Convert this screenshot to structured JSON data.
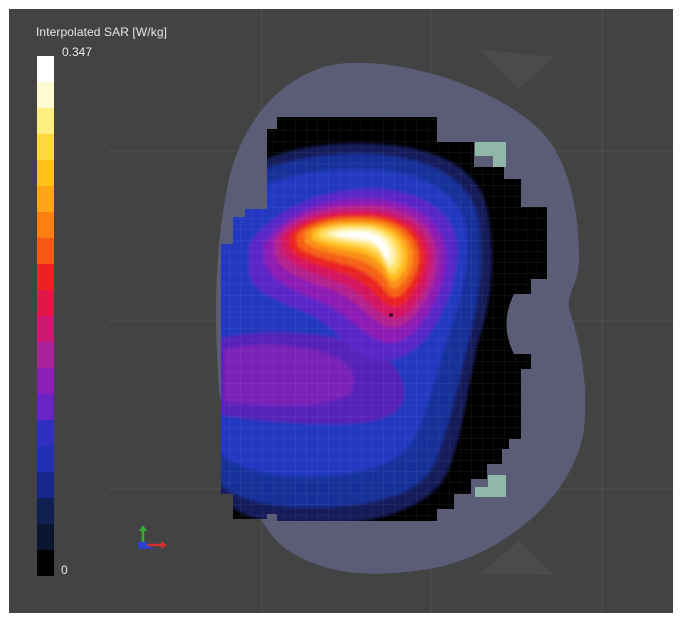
{
  "legend": {
    "title": "Interpolated SAR [W/kg]",
    "max_label": "0.347",
    "min_label": "0",
    "colors_top_to_bottom": [
      "#ffffff",
      "#fffbd0",
      "#ffef80",
      "#ffd740",
      "#ffc21a",
      "#ffa41a",
      "#fb8014",
      "#f55a14",
      "#ee2020",
      "#e01848",
      "#c81870",
      "#a8209a",
      "#8a20b8",
      "#6a24c4",
      "#3030c0",
      "#2030b0",
      "#16288a",
      "#102050",
      "#0a1530",
      "#000000"
    ]
  },
  "colors": {
    "background": "#434343",
    "phantom": "#5b5d76",
    "mask": "#000000",
    "marker": "#8fb8a8"
  },
  "icons": {
    "axes": "coordinate-axes-icon"
  }
}
